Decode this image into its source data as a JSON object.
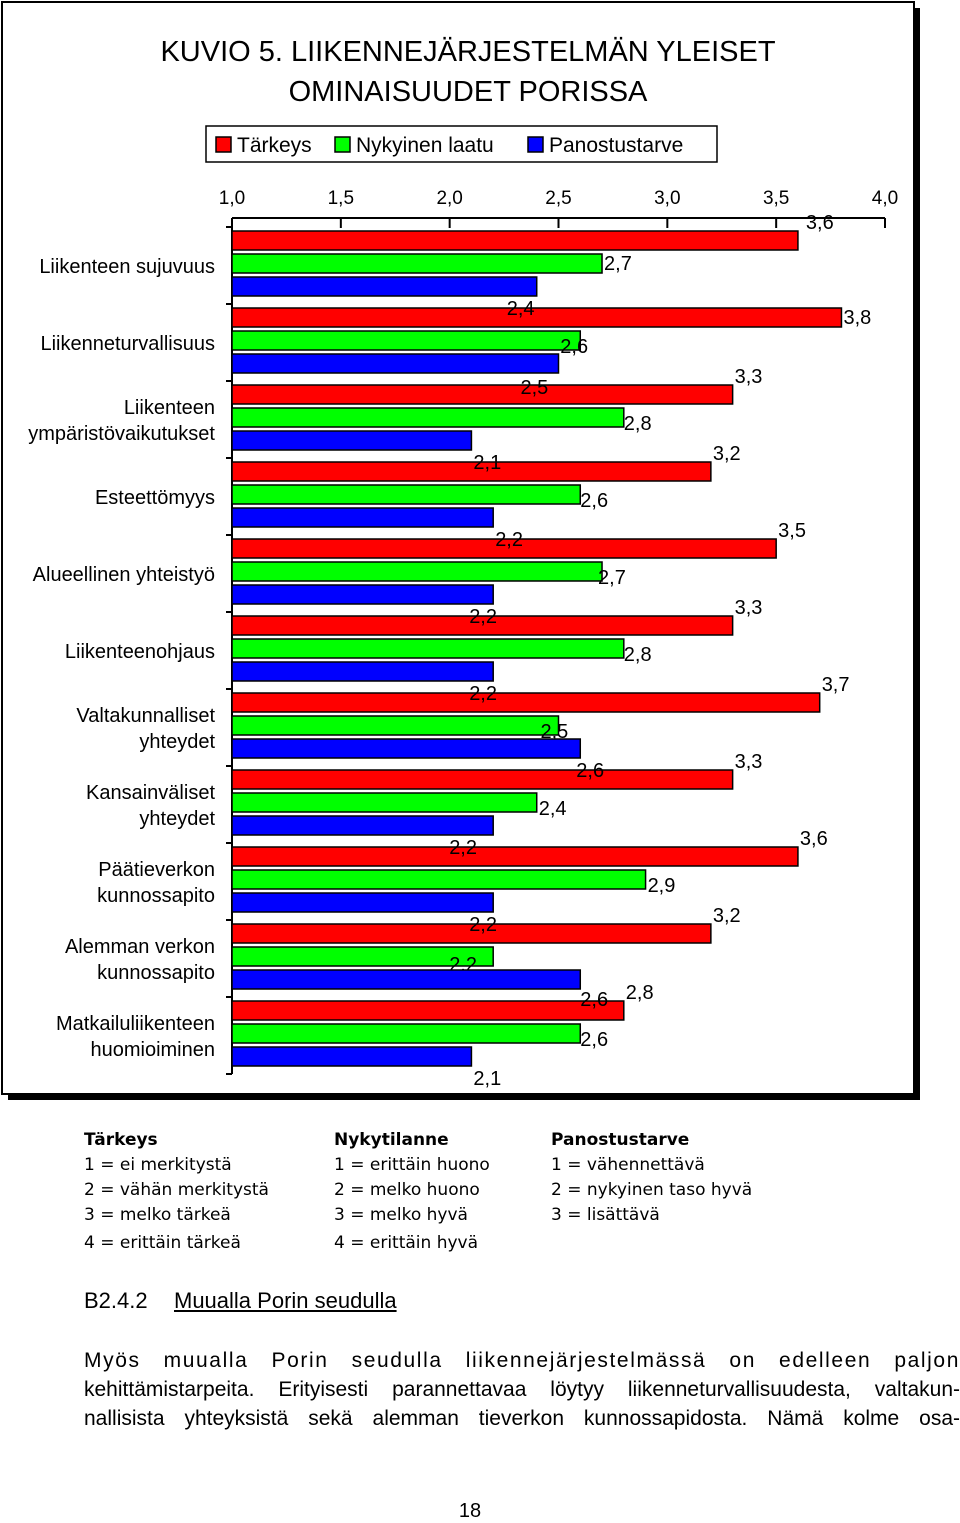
{
  "chart_data": {
    "type": "bar",
    "orientation": "horizontal",
    "title": [
      "KUVIO 5. LIIKENNEJÄRJESTELMÄN YLEISET",
      "OMINAISUUDET PORISSA"
    ],
    "legend_position": "top",
    "xlim": [
      1.0,
      4.0
    ],
    "x_ticks": [
      "1,0",
      "1,5",
      "2,0",
      "2,5",
      "3,0",
      "3,5",
      "4,0"
    ],
    "x_tick_values": [
      1.0,
      1.5,
      2.0,
      2.5,
      3.0,
      3.5,
      4.0
    ],
    "grid": false,
    "categories": [
      [
        "Liikenteen sujuvuus"
      ],
      [
        "Liikenneturvallisuus"
      ],
      [
        "Liikenteen",
        "ympäristövaikutukset"
      ],
      [
        "Esteettömyys"
      ],
      [
        "Alueellinen yhteistyö"
      ],
      [
        "Liikenteenohjaus"
      ],
      [
        "Valtakunnalliset",
        "yhteydet"
      ],
      [
        "Kansainväliset",
        "yhteydet"
      ],
      [
        "Päätieverkon",
        "kunnossapito"
      ],
      [
        "Alemman verkon",
        "kunnossapito"
      ],
      [
        "Matkailuliikenteen",
        "huomioiminen"
      ]
    ],
    "series": [
      {
        "name": "Tärkeys",
        "color": "#ff0000",
        "values": [
          3.6,
          3.8,
          3.3,
          3.2,
          3.5,
          3.3,
          3.7,
          3.3,
          3.6,
          3.2,
          2.8
        ],
        "labels": [
          "3,6",
          "3,8",
          "3,3",
          "3,2",
          "3,5",
          "3,3",
          "3,7",
          "3,3",
          "3,6",
          "3,2",
          "2,8"
        ]
      },
      {
        "name": "Nykyinen laatu",
        "color": "#00ff00",
        "values": [
          2.7,
          2.6,
          2.8,
          2.6,
          2.7,
          2.8,
          2.5,
          2.4,
          2.9,
          2.2,
          2.6
        ],
        "labels": [
          "2,7",
          "2,6",
          "2,8",
          "2,6",
          "2,7",
          "2,8",
          "2,5",
          "2,4",
          "2,9",
          "2,2",
          "2,6"
        ]
      },
      {
        "name": "Panostustarve",
        "color": "#0000ff",
        "values": [
          2.4,
          2.5,
          2.1,
          2.2,
          2.2,
          2.2,
          2.6,
          2.2,
          2.2,
          2.6,
          2.1
        ],
        "labels": [
          "2,4",
          "2,5",
          "2,1",
          "2,2",
          "2,2",
          "2,2",
          "2,6",
          "2,2",
          "2,2",
          "2,6",
          "2,1"
        ]
      }
    ]
  },
  "scale_legend": {
    "columns": [
      {
        "heading": "Tärkeys",
        "items": [
          "1 = ei merkitystä",
          "2 = vähän merkitystä",
          "3 = melko tärkeä",
          "4 = erittäin tärkeä"
        ]
      },
      {
        "heading": "Nykytilanne",
        "items": [
          "1 = erittäin huono",
          "2 = melko huono",
          "3 = melko hyvä",
          "4 = erittäin hyvä"
        ]
      },
      {
        "heading": "Panostustarve",
        "items": [
          "1 = vähennettävä",
          "2 = nykyinen taso hyvä",
          "3 = lisättävä"
        ]
      }
    ]
  },
  "section": {
    "number": "B2.4.2",
    "title": "Muualla Porin seudulla"
  },
  "body_lines": [
    "Myös muualla Porin seudulla liikennejärjestelmässä on edelleen paljon",
    "kehittämistarpeita. Erityisesti parannettavaa löytyy liikenneturvallisuudesta, valtakun-",
    "nallisista yhteyksistä sekä alemman tieverkon kunnossapidosta. Nämä kolme osa-"
  ],
  "page_number": "18"
}
